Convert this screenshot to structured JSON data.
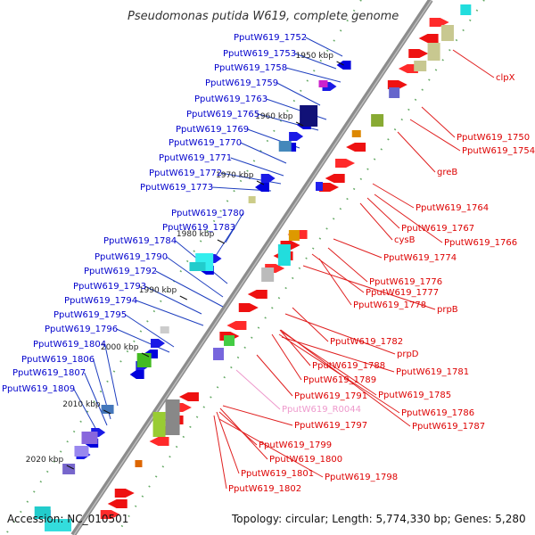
{
  "title": "Pseudomonas putida W619, complete genome",
  "footer": {
    "accession": "Accession: NC_010501",
    "topology": "Topology: circular; Length: 5,774,330 bp; Genes: 5,280"
  },
  "colors": {
    "left_label": "#0000cc",
    "right_label": "#dd0000",
    "rna_label": "#ee99cc",
    "backbone": "#8c8c8c",
    "leader": "#1f3fbf",
    "leader_right": "#e02020",
    "tick": "#2e8b2e"
  },
  "ticks": [
    "1950 kbp",
    "1960 kbp",
    "1970 kbp",
    "1980 kbp",
    "1990 kbp",
    "2000 kbp",
    "2010 kbp",
    "2020 kbp"
  ],
  "left_labels": [
    "PputW619_1752",
    "PputW619_1753",
    "PputW619_1758",
    "PputW619_1759",
    "PputW619_1763",
    "PputW619_1765",
    "PputW619_1769",
    "PputW619_1770",
    "PputW619_1771",
    "PputW619_1772",
    "PputW619_1773",
    "PputW619_1780",
    "PputW619_1783",
    "PputW619_1784",
    "PputW619_1790",
    "PputW619_1792",
    "PputW619_1793",
    "PputW619_1794",
    "PputW619_1795",
    "PputW619_1796",
    "PputW619_1804",
    "PputW619_1806",
    "PputW619_1807",
    "PputW619_1809"
  ],
  "right_labels": [
    "clpX",
    "PputW619_1750",
    "PputW619_1754",
    "greB",
    "PputW619_1764",
    "PputW619_1767",
    "cysB",
    "PputW619_1766",
    "PputW619_1774",
    "PputW619_1776",
    "PputW619_1777",
    "PputW619_1778",
    "prpB",
    "PputW619_1782",
    "prpD",
    "PputW619_1788",
    "PputW619_1781",
    "PputW619_1789",
    "PputW619_1785",
    "PputW619_1791",
    "PputW619_R0044",
    "PputW619_1786",
    "PputW619_1797",
    "PputW619_1787",
    "PputW619_1799",
    "PputW619_1800",
    "PputW619_1801",
    "PputW619_1798",
    "PputW619_1802"
  ]
}
